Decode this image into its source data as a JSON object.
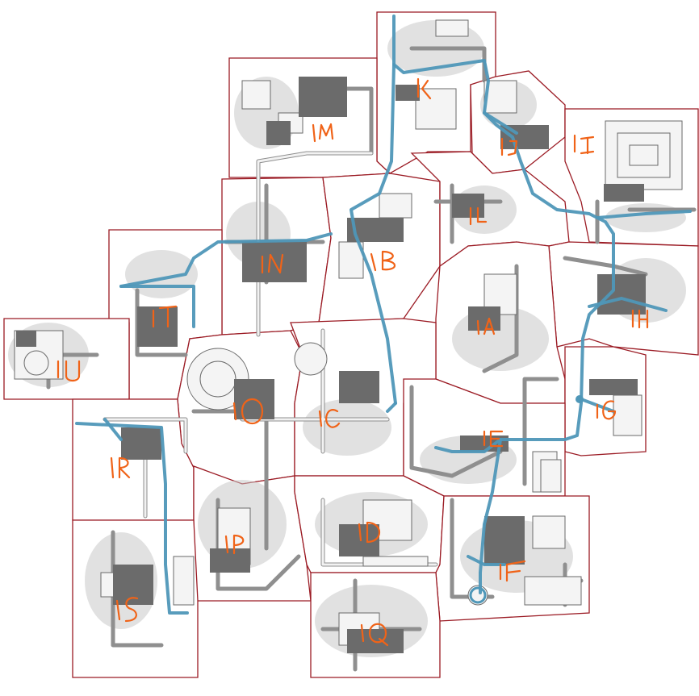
{
  "map": {
    "border_color": "#9b1b24",
    "river_color": "#4f97b8",
    "label_color": "#f06318",
    "sections": [
      {
        "id": "1A",
        "label": "1A"
      },
      {
        "id": "1B",
        "label": "1B"
      },
      {
        "id": "1C",
        "label": "1C"
      },
      {
        "id": "1D",
        "label": "1D"
      },
      {
        "id": "1E",
        "label": "1E"
      },
      {
        "id": "1F",
        "label": "1F"
      },
      {
        "id": "1G",
        "label": "1G"
      },
      {
        "id": "1H",
        "label": "1H"
      },
      {
        "id": "1I",
        "label": "1I"
      },
      {
        "id": "1J",
        "label": "1J"
      },
      {
        "id": "1K",
        "label": "1K"
      },
      {
        "id": "1L",
        "label": "1L"
      },
      {
        "id": "1M",
        "label": "1M"
      },
      {
        "id": "1N",
        "label": "1N"
      },
      {
        "id": "1O",
        "label": "1O"
      },
      {
        "id": "1P",
        "label": "1P"
      },
      {
        "id": "1Q",
        "label": "1Q"
      },
      {
        "id": "1R",
        "label": "1R"
      },
      {
        "id": "1S",
        "label": "1S"
      },
      {
        "id": "1T",
        "label": "1T"
      },
      {
        "id": "1U",
        "label": "1U"
      }
    ]
  }
}
